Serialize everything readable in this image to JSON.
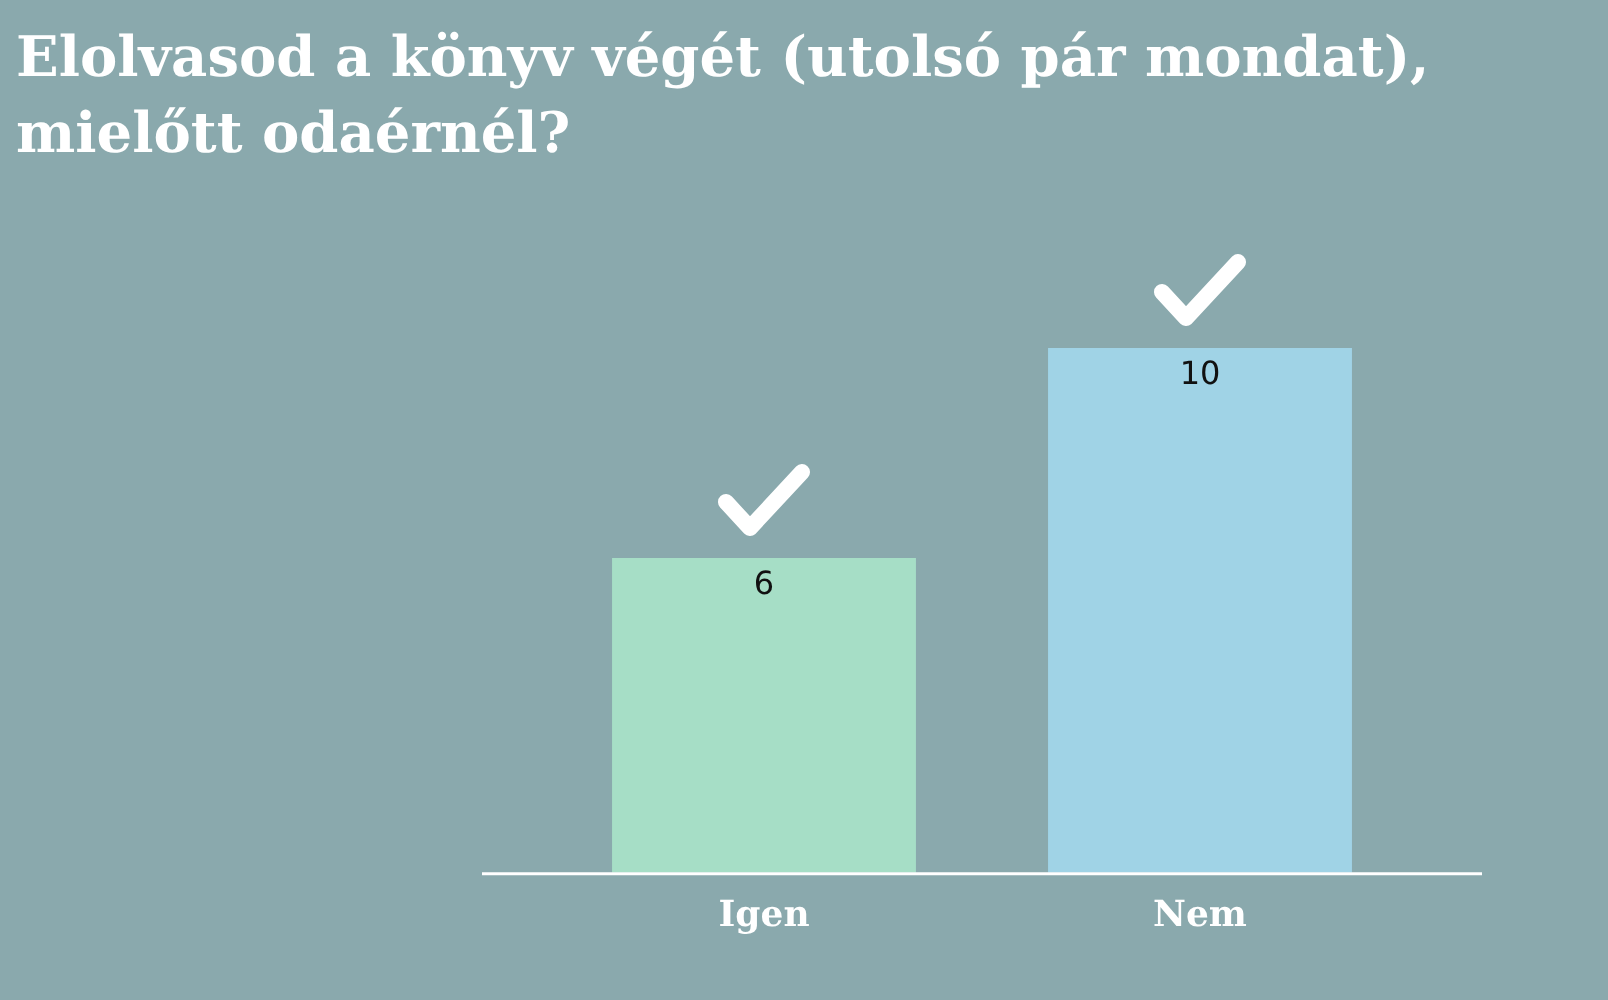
{
  "chart_data": {
    "type": "bar",
    "title": "Elolvasod a könyv végét (utolsó pár mondat), mielőtt odaérnél?",
    "categories": [
      "Igen",
      "Nem"
    ],
    "values": [
      6,
      10
    ],
    "colors": [
      "#a6dec6",
      "#a0d3e6"
    ],
    "data_labels": true
  }
}
